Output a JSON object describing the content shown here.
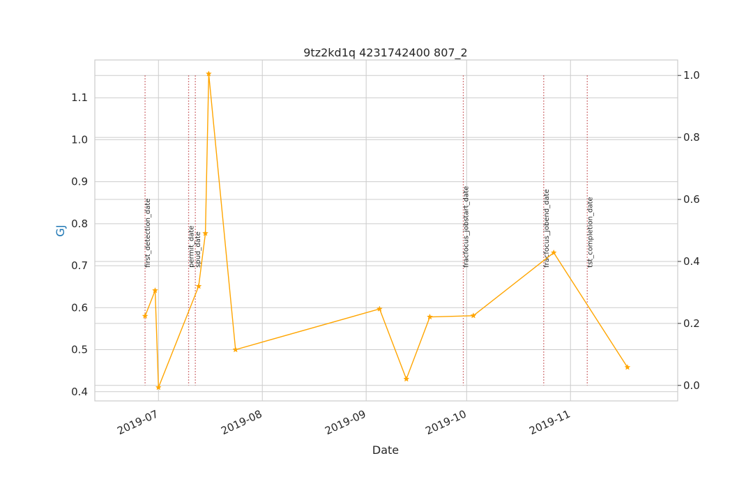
{
  "chart_data": {
    "type": "line",
    "title": "9tz2kd1q 4231742400 807_2",
    "xlabel": "Date",
    "ylabel": "GJ",
    "ylabel_color": "#1f77b4",
    "x_ticks": [
      "2019-07",
      "2019-08",
      "2019-09",
      "2019-10",
      "2019-11"
    ],
    "x_range": [
      "2019-06-12",
      "2019-12-03"
    ],
    "y_left_ticks": [
      "0.4",
      "0.5",
      "0.6",
      "0.7",
      "0.8",
      "0.9",
      "1.0",
      "1.1"
    ],
    "y_left_range": [
      0.378,
      1.19
    ],
    "y_right_ticks": [
      "0.0",
      "0.2",
      "0.4",
      "0.6",
      "0.8",
      "1.0"
    ],
    "y_right_range": [
      -0.05,
      1.05
    ],
    "grid": true,
    "series": [
      {
        "color": "#ffa500",
        "marker": "star",
        "points": [
          {
            "x": "2019-06-27",
            "y": 0.58
          },
          {
            "x": "2019-06-30",
            "y": 0.641
          },
          {
            "x": "2019-07-01",
            "y": 0.41
          },
          {
            "x": "2019-07-13",
            "y": 0.651
          },
          {
            "x": "2019-07-15",
            "y": 0.777
          },
          {
            "x": "2019-07-16",
            "y": 1.157
          },
          {
            "x": "2019-07-24",
            "y": 0.5
          },
          {
            "x": "2019-09-05",
            "y": 0.597
          },
          {
            "x": "2019-09-13",
            "y": 0.43
          },
          {
            "x": "2019-09-20",
            "y": 0.578
          },
          {
            "x": "2019-10-03",
            "y": 0.581
          },
          {
            "x": "2019-10-27",
            "y": 0.731
          },
          {
            "x": "2019-11-18",
            "y": 0.458
          }
        ]
      }
    ],
    "events": [
      {
        "label": "first_detection_date",
        "date": "2019-06-27"
      },
      {
        "label": "permit_date",
        "date": "2019-07-10"
      },
      {
        "label": "spud_date",
        "date": "2019-07-12"
      },
      {
        "label": "fracfocus_jobstart_date",
        "date": "2019-09-30"
      },
      {
        "label": "fracfocus_jobend_date",
        "date": "2019-10-24"
      },
      {
        "label": "tst_completion_date",
        "date": "2019-11-06"
      }
    ],
    "event_line_color": "#c44e52"
  }
}
